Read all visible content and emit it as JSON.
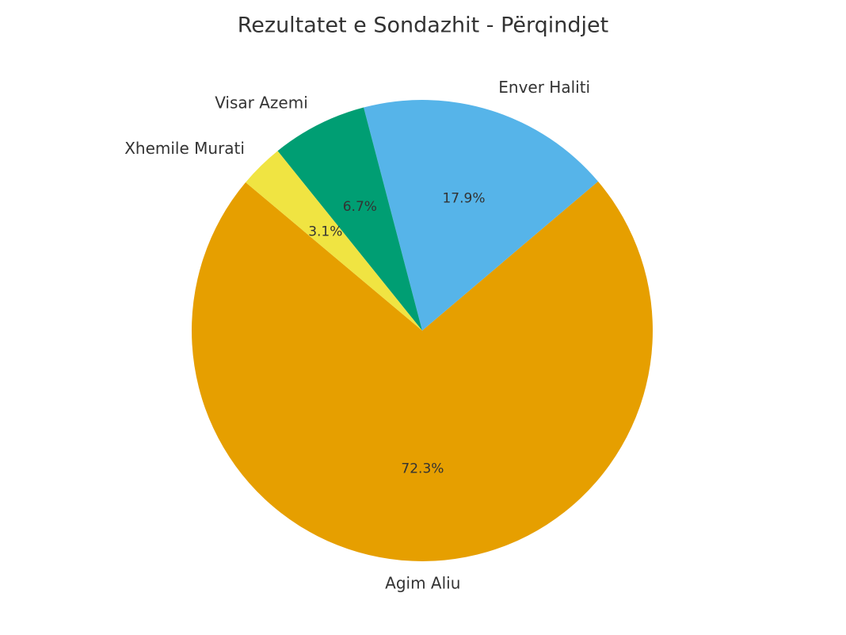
{
  "chart_data": {
    "type": "pie",
    "title": "Rezultatet e Sondazhit - Përqindjet",
    "categories": [
      "Agim Aliu",
      "Enver Haliti",
      "Visar Azemi",
      "Xhemile Murati"
    ],
    "values": [
      72.3,
      17.9,
      6.7,
      3.1
    ],
    "value_labels": [
      "72.3%",
      "17.9%",
      "6.7%",
      "3.1%"
    ],
    "colors": [
      "#E69F00",
      "#56B4E9",
      "#009E73",
      "#F0E442"
    ]
  }
}
